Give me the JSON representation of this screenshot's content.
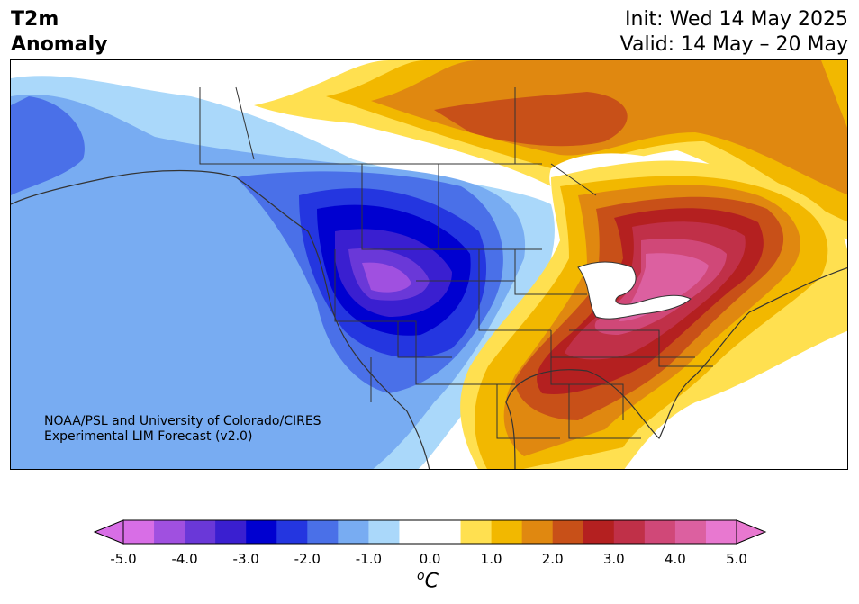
{
  "title": {
    "left_line1": "T2m",
    "left_line2": "Anomaly",
    "right_line1": "Init: Wed 14 May 2025",
    "right_line2": "Valid: 14 May – 20 May"
  },
  "credit": {
    "line1": "NOAA/PSL and University of Colorado/CIRES",
    "line2": "Experimental LIM Forecast (v2.0)"
  },
  "colorbar": {
    "ticks": [
      "-5.0",
      "-4.0",
      "-3.0",
      "-2.0",
      "-1.0",
      "0.0",
      "1.0",
      "2.0",
      "3.0",
      "4.0",
      "5.0"
    ],
    "unit_base": "C",
    "unit_sup": "o",
    "colors": [
      "#d86ee6",
      "#a050e0",
      "#6a38d8",
      "#3a1fd0",
      "#0000d0",
      "#2436e0",
      "#4a70e8",
      "#78acf2",
      "#aad8fa",
      "#ffffff",
      "#ffffff",
      "#ffe050",
      "#f2b800",
      "#e08810",
      "#c85018",
      "#b42020",
      "#c03048",
      "#d04878",
      "#dc60a0",
      "#e878d0"
    ]
  }
}
